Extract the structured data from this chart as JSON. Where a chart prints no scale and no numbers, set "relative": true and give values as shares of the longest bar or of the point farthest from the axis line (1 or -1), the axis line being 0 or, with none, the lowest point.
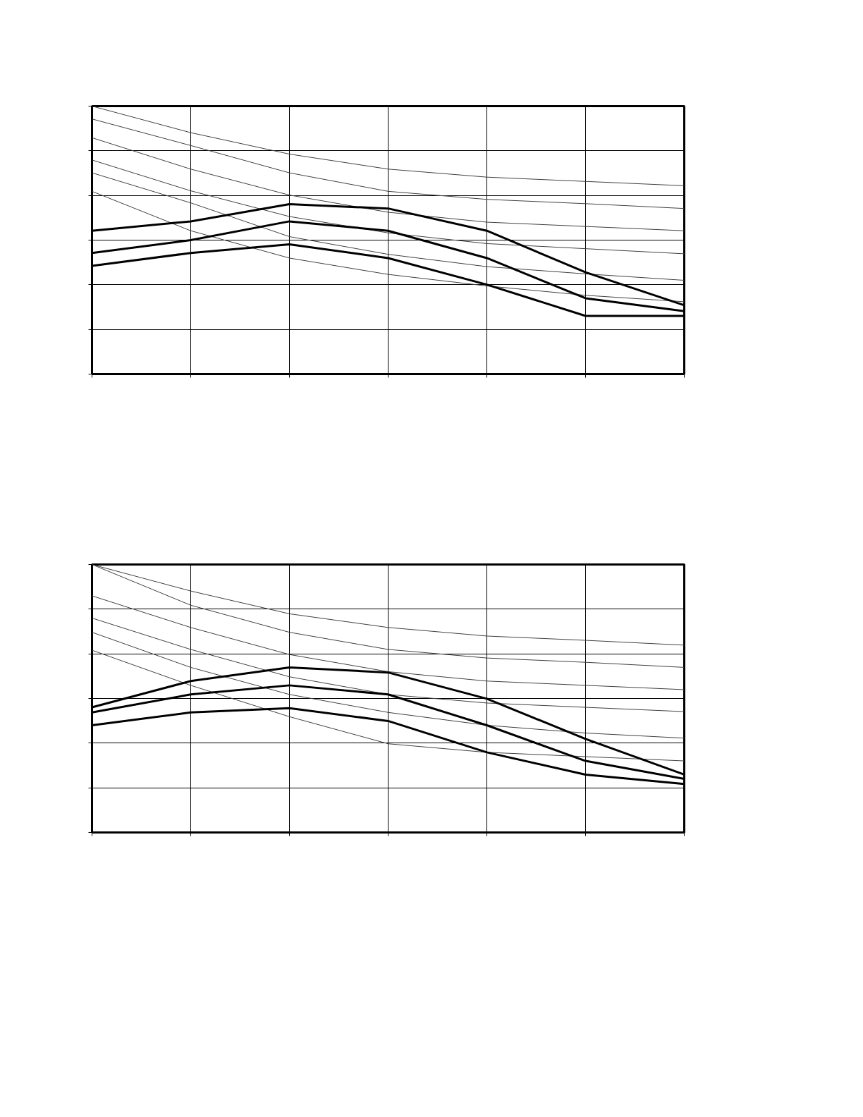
{
  "chart_data": [
    {
      "type": "line",
      "relative": true,
      "grid": true,
      "line_style": "solid",
      "categories": [
        null,
        null,
        null,
        null,
        null,
        null,
        null
      ],
      "series": [
        {
          "color": "#404040",
          "values": [
            1.0,
            0.901,
            0.821,
            0.765,
            0.735,
            0.719,
            0.703
          ]
        },
        {
          "color": "#404040",
          "values": [
            0.952,
            0.853,
            0.751,
            0.682,
            0.652,
            0.636,
            0.618
          ]
        },
        {
          "color": "#404040",
          "values": [
            0.882,
            0.765,
            0.668,
            0.604,
            0.567,
            0.551,
            0.535
          ]
        },
        {
          "color": "#404040",
          "values": [
            0.799,
            0.684,
            0.588,
            0.527,
            0.487,
            0.468,
            0.449
          ]
        },
        {
          "color": "#404040",
          "values": [
            0.751,
            0.639,
            0.513,
            0.447,
            0.401,
            0.374,
            0.35
          ]
        },
        {
          "color": "#404040",
          "values": [
            0.682,
            0.535,
            0.433,
            0.372,
            0.329,
            0.294,
            0.27
          ]
        },
        {
          "color": "#000000",
          "values": [
            0.535,
            0.57,
            0.634,
            0.618,
            0.535,
            0.38,
            0.257
          ]
        },
        {
          "color": "#000000",
          "values": [
            0.452,
            0.5,
            0.57,
            0.535,
            0.433,
            0.283,
            0.235
          ]
        },
        {
          "color": "#000000",
          "values": [
            0.404,
            0.452,
            0.484,
            0.433,
            0.334,
            0.217,
            0.217
          ]
        }
      ]
    },
    {
      "type": "line",
      "relative": true,
      "grid": true,
      "line_style": "solid",
      "categories": [
        null,
        null,
        null,
        null,
        null,
        null,
        null
      ],
      "series": [
        {
          "color": "#404040",
          "values": [
            1.0,
            0.901,
            0.816,
            0.765,
            0.733,
            0.717,
            0.699
          ]
        },
        {
          "color": "#404040",
          "values": [
            1.0,
            0.848,
            0.747,
            0.683,
            0.651,
            0.635,
            0.616
          ]
        },
        {
          "color": "#404040",
          "values": [
            0.883,
            0.765,
            0.664,
            0.6,
            0.565,
            0.549,
            0.533
          ]
        },
        {
          "color": "#404040",
          "values": [
            0.8,
            0.683,
            0.581,
            0.515,
            0.483,
            0.467,
            0.451
          ]
        },
        {
          "color": "#404040",
          "values": [
            0.747,
            0.616,
            0.515,
            0.448,
            0.4,
            0.371,
            0.352
          ]
        },
        {
          "color": "#404040",
          "values": [
            0.68,
            0.549,
            0.432,
            0.331,
            0.299,
            0.283,
            0.267
          ]
        },
        {
          "color": "#000000",
          "values": [
            0.467,
            0.565,
            0.616,
            0.597,
            0.499,
            0.349,
            0.216
          ]
        },
        {
          "color": "#000000",
          "values": [
            0.448,
            0.515,
            0.549,
            0.515,
            0.4,
            0.267,
            0.2
          ]
        },
        {
          "color": "#000000",
          "values": [
            0.4,
            0.448,
            0.464,
            0.416,
            0.299,
            0.216,
            0.181
          ]
        }
      ]
    }
  ]
}
